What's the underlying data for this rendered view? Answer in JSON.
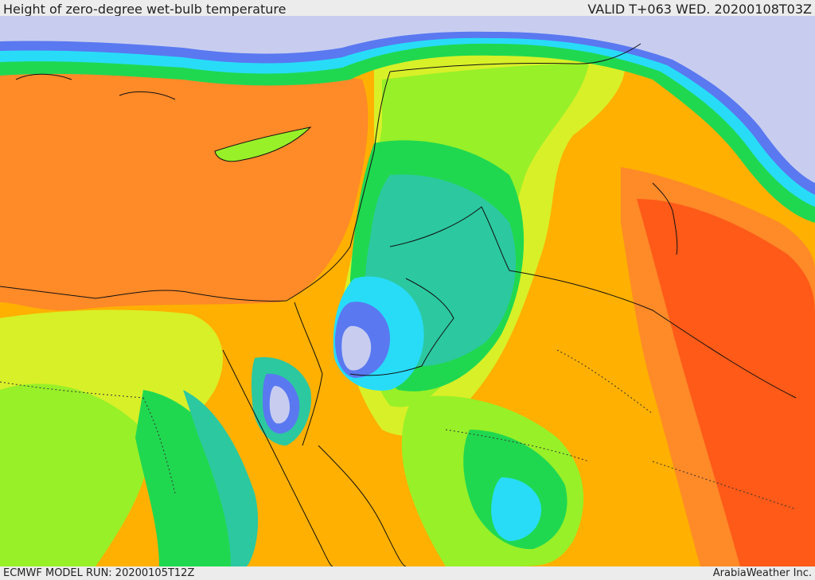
{
  "header": {
    "title": "Height of zero-degree wet-bulb temperature",
    "valid": "VALID T+063 WED. 20200108T03Z"
  },
  "footer": {
    "model_run": "ECMWF MODEL RUN: 20200105T12Z",
    "credit": "ArabiaWeather Inc."
  },
  "colors": {
    "lowest_lavender": "#c8cdf0",
    "blue": "#5a78f0",
    "cyan": "#28dcf8",
    "teal": "#2cc8a0",
    "green": "#20d850",
    "yellow_green": "#98f028",
    "yellow": "#d8f028",
    "light_orange": "#ffb000",
    "orange": "#ff8a28",
    "dark_orange": "#ff5a18",
    "border_line": "#111111"
  }
}
